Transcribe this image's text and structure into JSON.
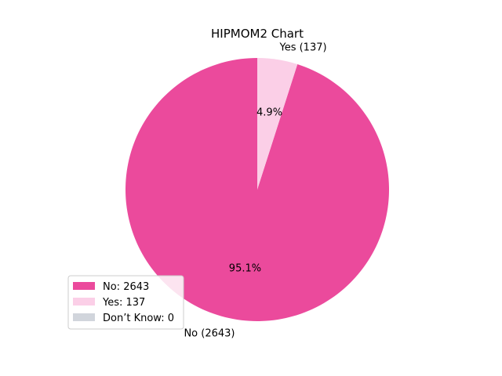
{
  "chart_data": {
    "type": "pie",
    "title": "HIPMOM2 Chart",
    "slices": [
      {
        "name": "No",
        "value": 2643,
        "color": "#EB4A9C",
        "percent_label": "95.1%",
        "outer_label": "No (2643)",
        "legend_label": "No: 2643"
      },
      {
        "name": "Yes",
        "value": 137,
        "color": "#FBCFE7",
        "percent_label": "4.9%",
        "outer_label": "Yes (137)",
        "legend_label": "Yes: 137"
      },
      {
        "name": "Don’t Know",
        "value": 0,
        "color": "#D1D5DC",
        "percent_label": "",
        "outer_label": "",
        "legend_label": "Don’t Know: 0"
      }
    ],
    "start_angle": "12 o'clock",
    "direction": "counterclockwise",
    "legend_position": "lower-left"
  }
}
